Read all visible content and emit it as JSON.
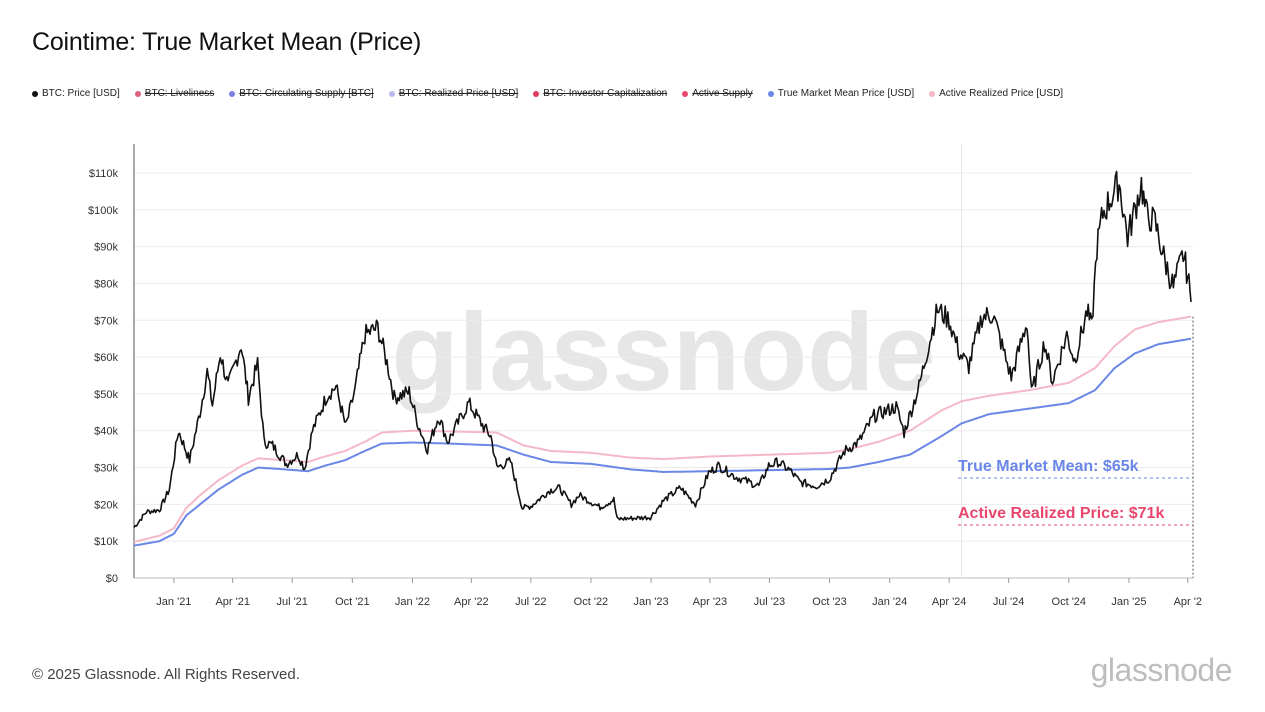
{
  "title": "Cointime: True Market Mean (Price)",
  "legend": [
    {
      "label": "BTC: Price [USD]",
      "color": "#111111",
      "enabled": true
    },
    {
      "label": "BTC: Liveliness",
      "color": "#e0607e",
      "enabled": false
    },
    {
      "label": "BTC: Circulating Supply [BTC]",
      "color": "#7b7fe0",
      "enabled": false
    },
    {
      "label": "BTC: Realized Price [USD]",
      "color": "#b8b8f0",
      "enabled": false
    },
    {
      "label": "BTC: Investor Capitalization",
      "color": "#e03a63",
      "enabled": false
    },
    {
      "label": "Active Supply",
      "color": "#e8466c",
      "enabled": false
    },
    {
      "label": "True Market Mean Price [USD]",
      "color": "#6a86e6",
      "enabled": true
    },
    {
      "label": "Active Realized Price [USD]",
      "color": "#f5b8c6",
      "enabled": true
    }
  ],
  "footer": {
    "copyright": "© 2025 Glassnode. All Rights Reserved.",
    "logo": "glassnode"
  },
  "watermark": "glassnode",
  "chart_data": {
    "type": "line",
    "xlabel": "",
    "ylabel": "",
    "ylim": [
      0,
      115000
    ],
    "xlim": [
      "2020-11-01",
      "2025-04-01"
    ],
    "grid": {
      "horizontal": true,
      "vertical": false
    },
    "legend_position": "top-left",
    "y_ticks": [
      {
        "value": 0,
        "label": "$0"
      },
      {
        "value": 10000,
        "label": "$10k"
      },
      {
        "value": 20000,
        "label": "$20k"
      },
      {
        "value": 30000,
        "label": "$30k"
      },
      {
        "value": 40000,
        "label": "$40k"
      },
      {
        "value": 50000,
        "label": "$50k"
      },
      {
        "value": 60000,
        "label": "$60k"
      },
      {
        "value": 70000,
        "label": "$70k"
      },
      {
        "value": 80000,
        "label": "$80k"
      },
      {
        "value": 90000,
        "label": "$90k"
      },
      {
        "value": 100000,
        "label": "$100k"
      },
      {
        "value": 110000,
        "label": "$110k"
      }
    ],
    "x_ticks": [
      {
        "date": "2021-01-01",
        "label": "Jan '21"
      },
      {
        "date": "2021-04-01",
        "label": "Apr '21"
      },
      {
        "date": "2021-07-01",
        "label": "Jul '21"
      },
      {
        "date": "2021-10-01",
        "label": "Oct '21"
      },
      {
        "date": "2022-01-01",
        "label": "Jan '22"
      },
      {
        "date": "2022-04-01",
        "label": "Apr '22"
      },
      {
        "date": "2022-07-01",
        "label": "Jul '22"
      },
      {
        "date": "2022-10-01",
        "label": "Oct '22"
      },
      {
        "date": "2023-01-01",
        "label": "Jan '23"
      },
      {
        "date": "2023-04-01",
        "label": "Apr '23"
      },
      {
        "date": "2023-07-01",
        "label": "Jul '23"
      },
      {
        "date": "2023-10-01",
        "label": "Oct '23"
      },
      {
        "date": "2024-01-01",
        "label": "Jan '24"
      },
      {
        "date": "2024-04-01",
        "label": "Apr '24"
      },
      {
        "date": "2024-07-01",
        "label": "Jul '24"
      },
      {
        "date": "2024-10-01",
        "label": "Oct '24"
      },
      {
        "date": "2025-01-01",
        "label": "Jan '25"
      },
      {
        "date": "2025-04-01",
        "label": "Apr '2"
      }
    ],
    "vertical_marker_date": "2024-04-20",
    "series": [
      {
        "name": "BTC: Price [USD]",
        "color": "#111111",
        "points": [
          [
            "2020-11-01",
            13700
          ],
          [
            "2020-11-20",
            18000
          ],
          [
            "2020-12-10",
            18500
          ],
          [
            "2020-12-25",
            24000
          ],
          [
            "2021-01-08",
            40000
          ],
          [
            "2021-01-25",
            32000
          ],
          [
            "2021-02-10",
            45000
          ],
          [
            "2021-02-21",
            56000
          ],
          [
            "2021-03-01",
            47000
          ],
          [
            "2021-03-13",
            61000
          ],
          [
            "2021-03-25",
            52000
          ],
          [
            "2021-04-14",
            63500
          ],
          [
            "2021-04-25",
            49000
          ],
          [
            "2021-05-09",
            58000
          ],
          [
            "2021-05-19",
            37000
          ],
          [
            "2021-06-01",
            36000
          ],
          [
            "2021-06-22",
            31000
          ],
          [
            "2021-07-10",
            33500
          ],
          [
            "2021-07-20",
            29800
          ],
          [
            "2021-08-01",
            40000
          ],
          [
            "2021-08-23",
            49500
          ],
          [
            "2021-09-06",
            52000
          ],
          [
            "2021-09-21",
            41000
          ],
          [
            "2021-10-05",
            51000
          ],
          [
            "2021-10-20",
            66000
          ],
          [
            "2021-11-09",
            68000
          ],
          [
            "2021-11-25",
            57000
          ],
          [
            "2021-12-04",
            49000
          ],
          [
            "2021-12-27",
            50500
          ],
          [
            "2022-01-10",
            41500
          ],
          [
            "2022-01-24",
            35000
          ],
          [
            "2022-02-10",
            44000
          ],
          [
            "2022-02-24",
            37000
          ],
          [
            "2022-03-28",
            47500
          ],
          [
            "2022-04-20",
            41000
          ],
          [
            "2022-05-01",
            38500
          ],
          [
            "2022-05-10",
            30000
          ],
          [
            "2022-05-31",
            31700
          ],
          [
            "2022-06-18",
            19000
          ],
          [
            "2022-07-01",
            19500
          ],
          [
            "2022-07-30",
            23800
          ],
          [
            "2022-08-14",
            24400
          ],
          [
            "2022-09-01",
            20000
          ],
          [
            "2022-09-13",
            22500
          ],
          [
            "2022-10-15",
            19200
          ],
          [
            "2022-11-05",
            21300
          ],
          [
            "2022-11-10",
            16000
          ],
          [
            "2022-12-31",
            16500
          ],
          [
            "2023-01-20",
            21000
          ],
          [
            "2023-02-15",
            24500
          ],
          [
            "2023-03-10",
            20000
          ],
          [
            "2023-03-30",
            28500
          ],
          [
            "2023-04-14",
            30500
          ],
          [
            "2023-05-10",
            27500
          ],
          [
            "2023-06-15",
            25000
          ],
          [
            "2023-06-30",
            30500
          ],
          [
            "2023-07-14",
            31500
          ],
          [
            "2023-08-01",
            29300
          ],
          [
            "2023-08-17",
            26000
          ],
          [
            "2023-09-11",
            25000
          ],
          [
            "2023-10-01",
            27000
          ],
          [
            "2023-10-24",
            34500
          ],
          [
            "2023-11-15",
            37000
          ],
          [
            "2023-12-08",
            44000
          ],
          [
            "2024-01-11",
            46500
          ],
          [
            "2024-01-23",
            39500
          ],
          [
            "2024-02-15",
            52000
          ],
          [
            "2024-02-28",
            62000
          ],
          [
            "2024-03-14",
            73000
          ],
          [
            "2024-04-01",
            70000
          ],
          [
            "2024-04-17",
            61000
          ],
          [
            "2024-05-01",
            57500
          ],
          [
            "2024-05-21",
            71000
          ],
          [
            "2024-06-07",
            71500
          ],
          [
            "2024-07-05",
            54500
          ],
          [
            "2024-07-29",
            69500
          ],
          [
            "2024-08-05",
            50000
          ],
          [
            "2024-08-25",
            64000
          ],
          [
            "2024-09-06",
            53500
          ],
          [
            "2024-09-28",
            66000
          ],
          [
            "2024-10-10",
            59000
          ],
          [
            "2024-10-29",
            72500
          ],
          [
            "2024-11-05",
            68000
          ],
          [
            "2024-11-13",
            90000
          ],
          [
            "2024-11-22",
            99000
          ],
          [
            "2024-12-17",
            107500
          ],
          [
            "2024-12-30",
            92500
          ],
          [
            "2025-01-20",
            107000
          ],
          [
            "2025-01-27",
            99000
          ],
          [
            "2025-02-10",
            96500
          ],
          [
            "2025-02-25",
            86000
          ],
          [
            "2025-03-10",
            79000
          ],
          [
            "2025-03-25",
            88000
          ],
          [
            "2025-04-01",
            82000
          ],
          [
            "2025-04-06",
            75000
          ]
        ]
      },
      {
        "name": "True Market Mean Price [USD]",
        "color": "#6a86e6",
        "points": [
          [
            "2020-11-01",
            8800
          ],
          [
            "2020-12-10",
            10000
          ],
          [
            "2021-01-01",
            12000
          ],
          [
            "2021-01-20",
            17000
          ],
          [
            "2021-02-10",
            20000
          ],
          [
            "2021-03-10",
            24000
          ],
          [
            "2021-04-15",
            28000
          ],
          [
            "2021-05-10",
            30000
          ],
          [
            "2021-06-20",
            29500
          ],
          [
            "2021-07-25",
            29000
          ],
          [
            "2021-08-20",
            30500
          ],
          [
            "2021-09-20",
            32000
          ],
          [
            "2021-10-20",
            34500
          ],
          [
            "2021-11-15",
            36500
          ],
          [
            "2022-01-01",
            36800
          ],
          [
            "2022-03-01",
            36500
          ],
          [
            "2022-05-10",
            36000
          ],
          [
            "2022-06-20",
            33500
          ],
          [
            "2022-08-01",
            31500
          ],
          [
            "2022-10-01",
            31000
          ],
          [
            "2022-12-01",
            29500
          ],
          [
            "2023-01-20",
            28800
          ],
          [
            "2023-04-01",
            29000
          ],
          [
            "2023-07-01",
            29300
          ],
          [
            "2023-10-01",
            29600
          ],
          [
            "2023-11-01",
            30000
          ],
          [
            "2023-12-15",
            31500
          ],
          [
            "2024-02-01",
            33500
          ],
          [
            "2024-03-20",
            38500
          ],
          [
            "2024-04-20",
            42000
          ],
          [
            "2024-06-01",
            44500
          ],
          [
            "2024-08-01",
            46000
          ],
          [
            "2024-10-01",
            47500
          ],
          [
            "2024-11-10",
            51000
          ],
          [
            "2024-12-10",
            57000
          ],
          [
            "2025-01-10",
            61000
          ],
          [
            "2025-02-15",
            63500
          ],
          [
            "2025-04-06",
            65000
          ]
        ]
      },
      {
        "name": "Active Realized Price [USD]",
        "color": "#f5b8c6",
        "points": [
          [
            "2020-11-01",
            9800
          ],
          [
            "2020-12-10",
            11500
          ],
          [
            "2021-01-01",
            13500
          ],
          [
            "2021-01-20",
            19000
          ],
          [
            "2021-02-10",
            22500
          ],
          [
            "2021-03-10",
            26500
          ],
          [
            "2021-04-15",
            30500
          ],
          [
            "2021-05-10",
            32500
          ],
          [
            "2021-06-20",
            32000
          ],
          [
            "2021-07-25",
            31500
          ],
          [
            "2021-08-20",
            33000
          ],
          [
            "2021-09-20",
            34500
          ],
          [
            "2021-10-20",
            37000
          ],
          [
            "2021-11-15",
            39500
          ],
          [
            "2022-01-01",
            40000
          ],
          [
            "2022-03-01",
            39800
          ],
          [
            "2022-05-10",
            39500
          ],
          [
            "2022-06-20",
            36000
          ],
          [
            "2022-08-01",
            34500
          ],
          [
            "2022-10-01",
            34000
          ],
          [
            "2022-12-01",
            32700
          ],
          [
            "2023-01-20",
            32300
          ],
          [
            "2023-04-01",
            33000
          ],
          [
            "2023-07-01",
            33500
          ],
          [
            "2023-10-01",
            34000
          ],
          [
            "2023-11-01",
            35000
          ],
          [
            "2023-12-15",
            37000
          ],
          [
            "2024-02-01",
            40000
          ],
          [
            "2024-03-20",
            45500
          ],
          [
            "2024-04-20",
            48000
          ],
          [
            "2024-06-01",
            49500
          ],
          [
            "2024-08-01",
            51000
          ],
          [
            "2024-10-01",
            53000
          ],
          [
            "2024-11-10",
            57000
          ],
          [
            "2024-12-10",
            63000
          ],
          [
            "2025-01-10",
            67500
          ],
          [
            "2025-02-15",
            69500
          ],
          [
            "2025-04-06",
            71000
          ]
        ]
      }
    ],
    "annotations": [
      {
        "text": "True Market Mean: $65k",
        "color": "#6a86e6",
        "value": 65000
      },
      {
        "text": "Active Realized Price: $71k",
        "color": "#e8466c",
        "value": 71000
      }
    ]
  }
}
